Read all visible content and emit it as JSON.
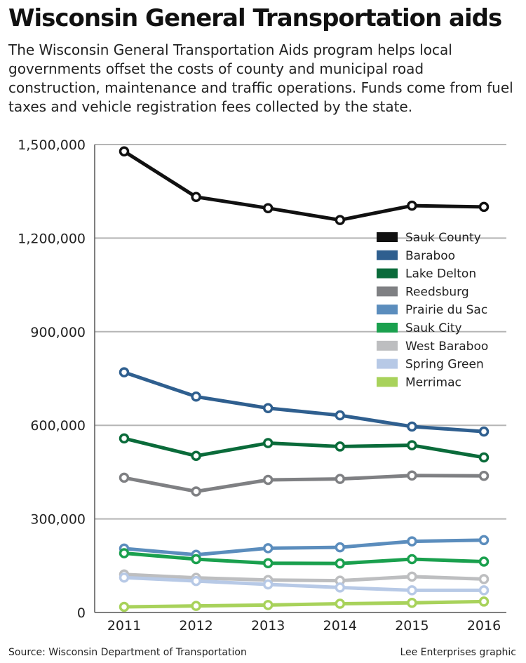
{
  "title": "Wisconsin General Transportation aids",
  "subtitle": "The Wisconsin General Transportation Aids program helps local governments offset the costs of county and municipal road construction, maintenance and traffic operations. Funds come from fuel taxes and vehicle registration fees collected by the state.",
  "source": "Source: Wisconsin Department of Transportation",
  "credit": "Lee Enterprises graphic",
  "chart_data": {
    "type": "line",
    "title": "",
    "xlabel": "",
    "ylabel": "",
    "x": [
      "2011",
      "2012",
      "2013",
      "2014",
      "2015",
      "2016"
    ],
    "ylim": [
      0,
      1500000
    ],
    "yticks": [
      0,
      300000,
      600000,
      900000,
      1200000,
      1500000
    ],
    "ytick_labels": [
      "0",
      "300,000",
      "600,000",
      "900,000",
      "1,200,000",
      "1,500,000"
    ],
    "grid": "horizontal",
    "legend_position": "right",
    "series": [
      {
        "name": "Sauk County",
        "color": "#111111",
        "values": [
          1478000,
          1332000,
          1296000,
          1258000,
          1304000,
          1300000
        ]
      },
      {
        "name": "Baraboo",
        "color": "#2f5f8f",
        "values": [
          770000,
          692000,
          655000,
          632000,
          596000,
          580000
        ]
      },
      {
        "name": "Lake Delton",
        "color": "#0a6b3a",
        "values": [
          558000,
          502000,
          543000,
          532000,
          536000,
          497000
        ]
      },
      {
        "name": "Reedsburg",
        "color": "#7f8083",
        "values": [
          432000,
          388000,
          425000,
          428000,
          439000,
          438000
        ]
      },
      {
        "name": "Prairie du Sac",
        "color": "#5b8dbd",
        "values": [
          205000,
          185000,
          206000,
          209000,
          228000,
          232000
        ]
      },
      {
        "name": "Sauk City",
        "color": "#1aa04e",
        "values": [
          190000,
          171000,
          158000,
          157000,
          171000,
          163000
        ]
      },
      {
        "name": "West Baraboo",
        "color": "#bdbec0",
        "values": [
          122000,
          111000,
          104000,
          102000,
          115000,
          107000
        ]
      },
      {
        "name": "Spring Green",
        "color": "#b7c9e6",
        "values": [
          112000,
          101000,
          90000,
          80000,
          71000,
          71000
        ]
      },
      {
        "name": "Merrimac",
        "color": "#a8d25b",
        "values": [
          18000,
          21000,
          24000,
          28000,
          31000,
          35000
        ]
      }
    ]
  }
}
